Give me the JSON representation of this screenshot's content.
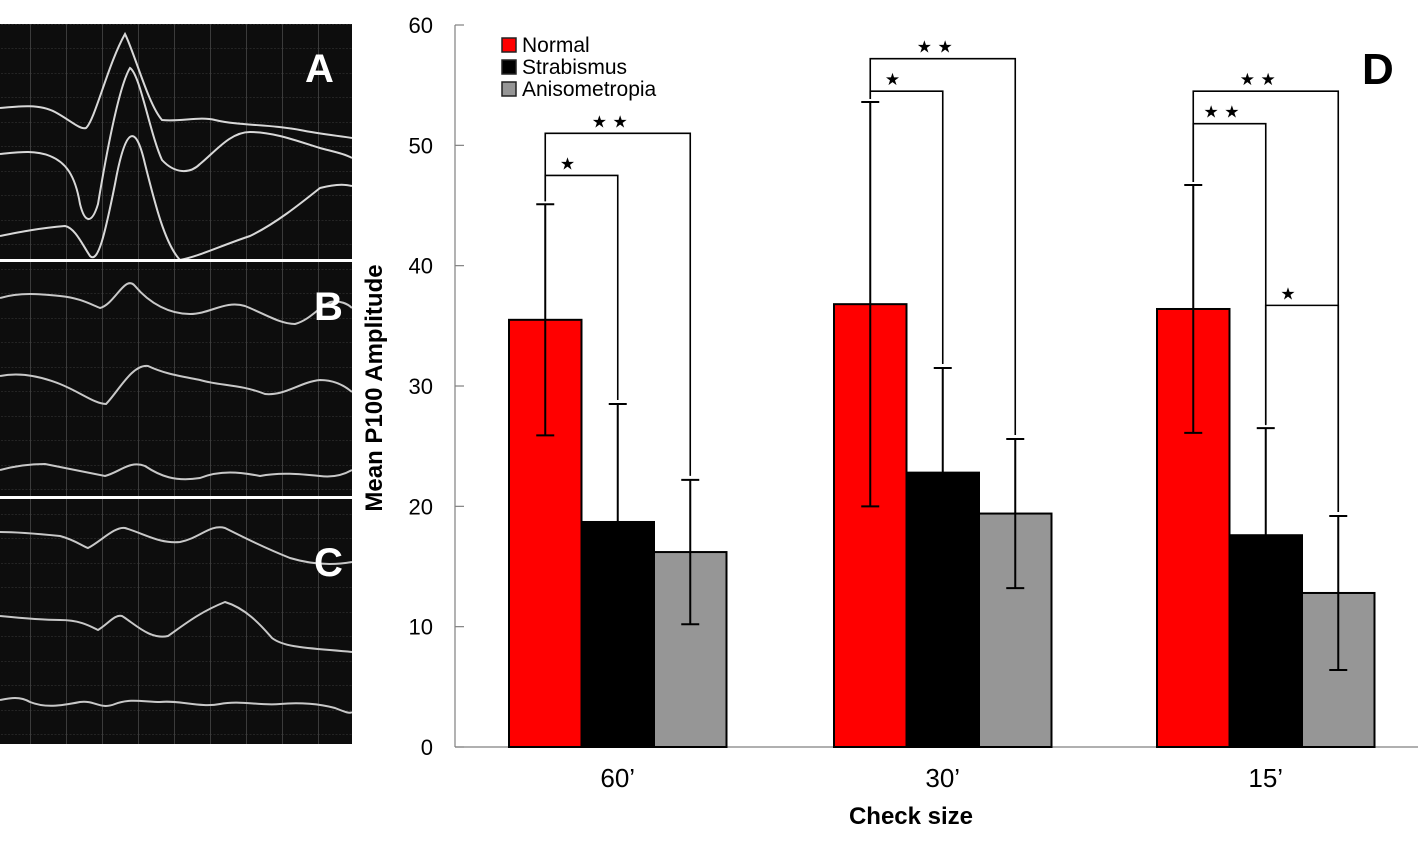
{
  "panels": {
    "vep": [
      {
        "label": "A",
        "description": "VEP waveform traces, normal subject"
      },
      {
        "label": "B",
        "description": "VEP waveform traces, strabismus"
      },
      {
        "label": "C",
        "description": "VEP waveform traces, anisometropia"
      }
    ],
    "chart_panel_label": "D"
  },
  "chart_data": {
    "type": "bar",
    "title": "",
    "xlabel": "Check size",
    "ylabel": "Mean P100 Amplitude",
    "ylim": [
      0,
      60
    ],
    "yticks": [
      0,
      10,
      20,
      30,
      40,
      50,
      60
    ],
    "categories": [
      "60’",
      "30’",
      "15’"
    ],
    "series": [
      {
        "name": "Normal",
        "color": "#ff0000",
        "values": [
          35.5,
          36.8,
          36.4
        ],
        "error": [
          9.6,
          16.8,
          10.3
        ]
      },
      {
        "name": "Strabismus",
        "color": "#000000",
        "values": [
          18.7,
          22.8,
          17.6
        ],
        "error": [
          9.8,
          8.7,
          8.9
        ]
      },
      {
        "name": "Anisometropia",
        "color": "#969696",
        "values": [
          16.2,
          19.4,
          12.8
        ],
        "error": [
          6.0,
          6.2,
          6.4
        ]
      }
    ],
    "legend": {
      "position": "top-left",
      "entries": [
        "Normal",
        "Strabismus",
        "Anisometropia"
      ]
    },
    "grid": false,
    "significance": [
      {
        "category": 0,
        "from": "Normal",
        "to": "Strabismus",
        "level": 47.5,
        "stars": "★"
      },
      {
        "category": 0,
        "from": "Normal",
        "to": "Anisometropia",
        "level": 51.0,
        "stars": "★ ★"
      },
      {
        "category": 1,
        "from": "Normal",
        "to": "Strabismus",
        "level": 54.5,
        "stars": "★"
      },
      {
        "category": 1,
        "from": "Normal",
        "to": "Anisometropia",
        "level": 57.2,
        "stars": "★ ★"
      },
      {
        "category": 2,
        "from": "Normal",
        "to": "Strabismus",
        "level": 51.8,
        "stars": "★ ★"
      },
      {
        "category": 2,
        "from": "Normal",
        "to": "Anisometropia",
        "level": 54.5,
        "stars": "★ ★"
      },
      {
        "category": 2,
        "from": "Strabismus",
        "to": "Anisometropia",
        "level": 36.7,
        "stars": "★"
      }
    ]
  }
}
